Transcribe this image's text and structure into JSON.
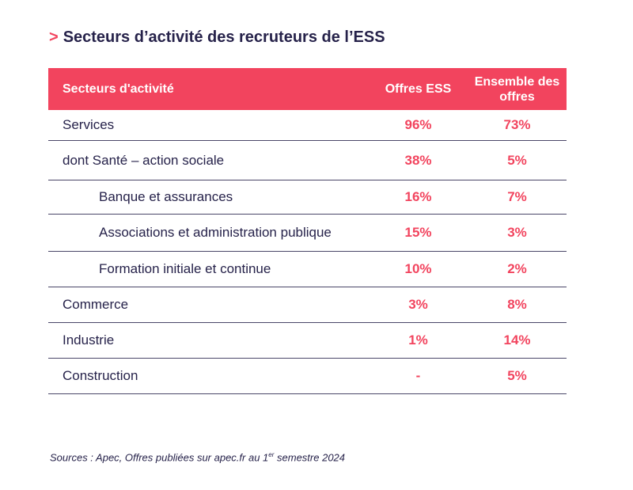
{
  "title": {
    "chevron": ">",
    "text": "Secteurs d’activité des recruteurs de l’ESS"
  },
  "table": {
    "headers": [
      "Secteurs d'activité",
      "Offres ESS",
      "Ensemble des offres"
    ],
    "rows": [
      {
        "sector": "Services",
        "ess": "96%",
        "all": "73%",
        "indent": false
      },
      {
        "sector": "dont Santé – action sociale",
        "ess": "38%",
        "all": "5%",
        "indent": false
      },
      {
        "sector": "Banque et assurances",
        "ess": "16%",
        "all": "7%",
        "indent": true
      },
      {
        "sector": "Associations et administration publique",
        "ess": "15%",
        "all": "3%",
        "indent": true
      },
      {
        "sector": "Formation initiale et continue",
        "ess": "10%",
        "all": "2%",
        "indent": true
      },
      {
        "sector": "Commerce",
        "ess": "3%",
        "all": "8%",
        "indent": false
      },
      {
        "sector": "Industrie",
        "ess": "1%",
        "all": "14%",
        "indent": false
      },
      {
        "sector": "Construction",
        "ess": "-",
        "all": "5%",
        "indent": false
      }
    ]
  },
  "source": {
    "prefix": "Sources : Apec, Offres publiées sur apec.fr au 1",
    "sup": "er",
    "suffix": " semestre 2024"
  },
  "colors": {
    "accent": "#f2445e",
    "text": "#26224a"
  }
}
